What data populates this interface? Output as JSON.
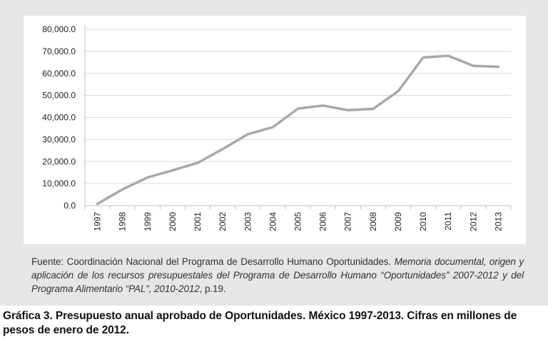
{
  "chart_data": {
    "type": "line",
    "title": "",
    "xlabel": "",
    "ylabel": "",
    "x": [
      "1997",
      "1998",
      "1999",
      "2000",
      "2001",
      "2002",
      "2003",
      "2004",
      "2005",
      "2006",
      "2007",
      "2008",
      "2009",
      "2010",
      "2011",
      "2012",
      "2013"
    ],
    "series": [
      {
        "name": "Presupuesto anual aprobado",
        "values": [
          800,
          7400,
          12800,
          16000,
          19400,
          25700,
          32400,
          35600,
          44000,
          45400,
          43300,
          43900,
          51900,
          67200,
          68000,
          63400,
          63000
        ],
        "color": "#a8a8a8"
      }
    ],
    "ylim": [
      0,
      80000
    ],
    "yticks": [
      0,
      10000,
      20000,
      30000,
      40000,
      50000,
      60000,
      70000,
      80000
    ],
    "ytick_labels": [
      "0.0",
      "10,000.0",
      "20,000.0",
      "30,000.0",
      "40,000.0",
      "50,000.0",
      "60,000.0",
      "70,000.0",
      "80,000.0"
    ],
    "grid": true,
    "legend": "none"
  },
  "source_note": {
    "regular_text": "Fuente: Coordinación Nacional del Programa de Desarrollo Humano Oportunidades. ",
    "italic_text": "Memoria documental, origen y aplicación de los recursos presupuestales del Programa de Desarrollo Humano “Oportunidades” 2007-2012 y del Programa Alimentario “PAL”, 2010-2012",
    "suffix_text": ", p.19."
  },
  "caption": {
    "text": "Gráfica 3. Presupuesto anual aprobado de Oportunidades. México 1997-2013. Cifras en millones de pesos de enero de 2012."
  },
  "colors": {
    "panel_background": "#e6e6e6",
    "plot_background": "#ffffff",
    "gridline": "#d9d9d9",
    "axis_line": "#bfbfbf"
  }
}
